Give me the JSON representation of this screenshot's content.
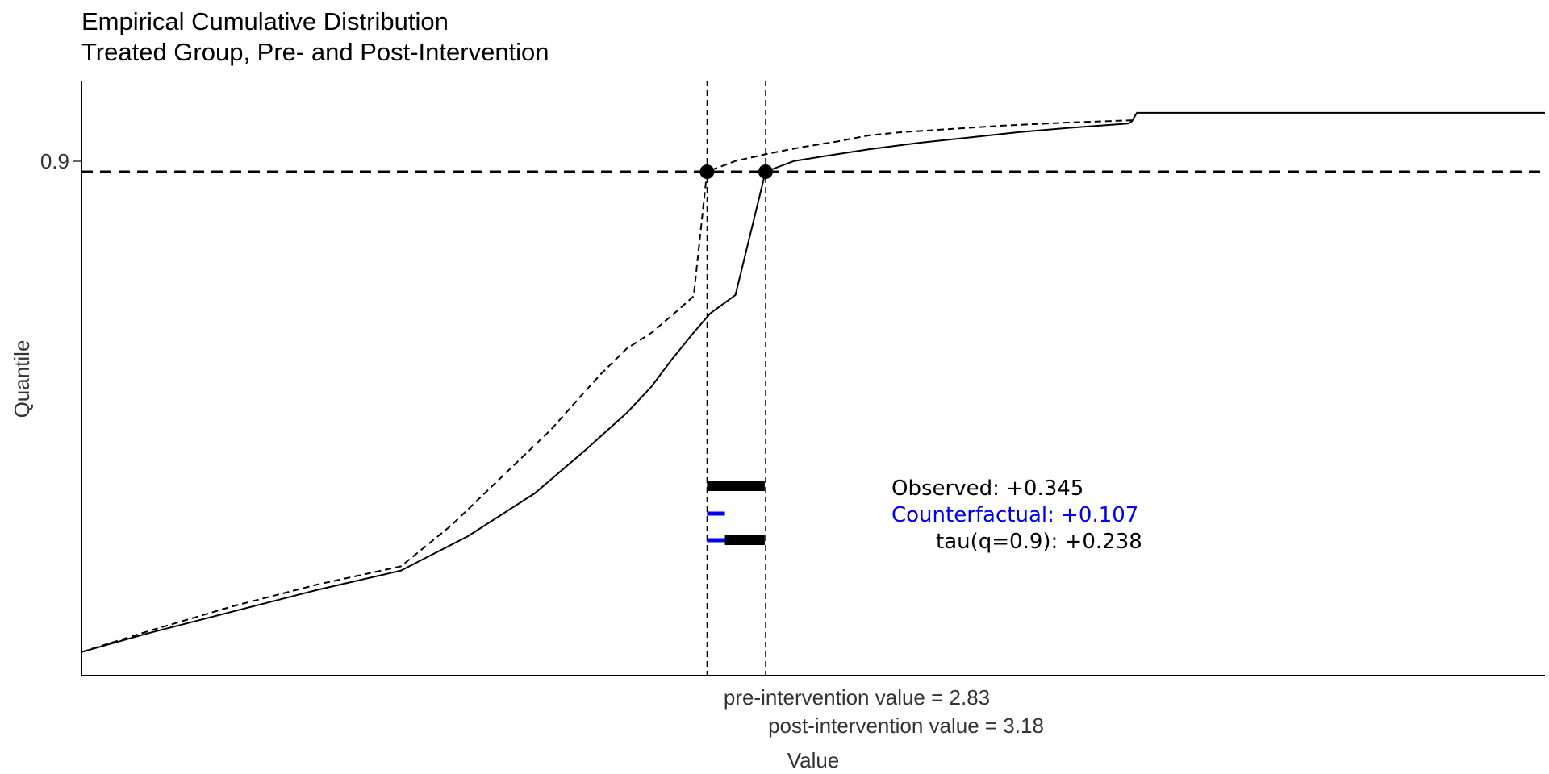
{
  "chart_data": {
    "type": "line",
    "title": "Empirical Cumulative Distribution",
    "subtitle": "Treated Group,  Pre- and Post-Intervention",
    "xlabel": "Value",
    "ylabel": "Quantile",
    "xlim": [
      -0.91,
      7.84
    ],
    "ylim": [
      0.43,
      0.985
    ],
    "quantile_line": {
      "q": 0.9,
      "tick_label": "0.9"
    },
    "series": [
      {
        "name": "Pre-intervention",
        "style": "dashed",
        "x": [
          -0.91,
          -0.5,
          0.0,
          0.5,
          1.0,
          1.3,
          1.6,
          1.9,
          2.1,
          2.2,
          2.35,
          2.5,
          2.65,
          2.75,
          2.83,
          3.0,
          3.2,
          3.4,
          3.6,
          3.8,
          4.0,
          4.3,
          4.6,
          5.0,
          5.37
        ],
        "y": [
          0.452,
          0.472,
          0.495,
          0.515,
          0.532,
          0.57,
          0.615,
          0.66,
          0.695,
          0.712,
          0.735,
          0.75,
          0.77,
          0.784,
          0.9,
          0.91,
          0.917,
          0.923,
          0.928,
          0.934,
          0.937,
          0.94,
          0.943,
          0.946,
          0.948
        ]
      },
      {
        "name": "Post-intervention",
        "style": "solid",
        "x": [
          -0.91,
          -0.5,
          0.0,
          0.5,
          1.0,
          1.4,
          1.8,
          2.1,
          2.35,
          2.5,
          2.62,
          2.75,
          2.85,
          3.0,
          3.18,
          3.35,
          3.55,
          3.8,
          4.1,
          4.4,
          4.7,
          5.0,
          5.35,
          5.37,
          5.4,
          7.84
        ],
        "y": [
          0.452,
          0.47,
          0.49,
          0.51,
          0.528,
          0.56,
          0.6,
          0.64,
          0.675,
          0.7,
          0.725,
          0.75,
          0.768,
          0.785,
          0.9,
          0.91,
          0.915,
          0.921,
          0.927,
          0.932,
          0.937,
          0.941,
          0.945,
          0.947,
          0.955,
          0.955
        ]
      }
    ],
    "markers": [
      {
        "name": "pre-intervention",
        "x": 2.83,
        "y": 0.9,
        "label": "pre-intervention value = 2.83"
      },
      {
        "name": "post-intervention",
        "x": 3.18,
        "y": 0.9,
        "label": "post-intervention value = 3.18"
      }
    ],
    "effects": [
      {
        "name": "observed",
        "label": "Observed:  +0.345",
        "value": 0.345,
        "color": "#000000"
      },
      {
        "name": "counterfactual",
        "label": "Counterfactual:  +0.107",
        "value": 0.107,
        "color": "#0000ee"
      },
      {
        "name": "tau",
        "label": "tau(q=0.9):  +0.238",
        "value": 0.238,
        "color": "#000000"
      }
    ]
  }
}
